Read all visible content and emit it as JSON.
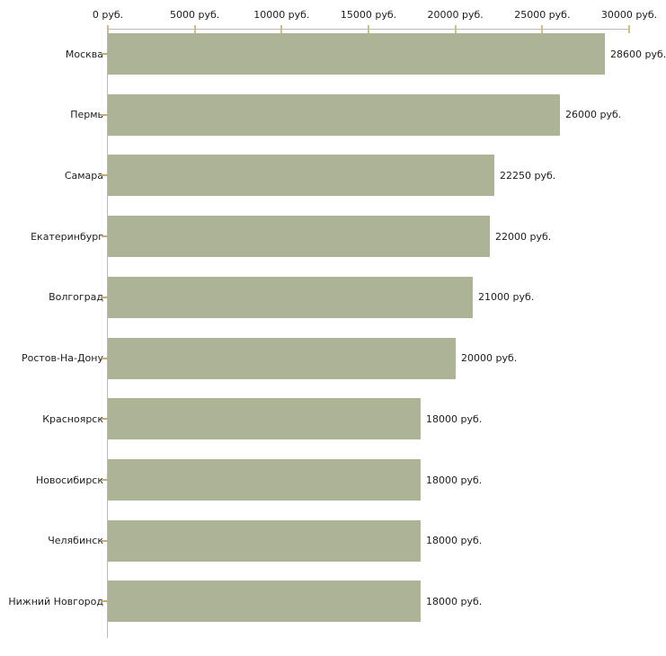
{
  "chart_data": {
    "type": "bar",
    "orientation": "horizontal",
    "title": "",
    "x_axis": {
      "position": "top",
      "tick_labels": [
        "0 руб.",
        "5000 руб.",
        "10000 руб.",
        "15000 руб.",
        "20000 руб.",
        "25000 руб.",
        "30000 руб."
      ],
      "tick_values": [
        0,
        5000,
        10000,
        15000,
        20000,
        25000,
        30000
      ],
      "xlim": [
        0,
        30000
      ]
    },
    "categories": [
      "Москва",
      "Пермь",
      "Самара",
      "Екатеринбург",
      "Волгоград",
      "Ростов-На-Дону",
      "Красноярск",
      "Новосибирск",
      "Челябинск",
      "Нижний Новгород"
    ],
    "values": [
      28600,
      26000,
      22250,
      22000,
      21000,
      20000,
      18000,
      18000,
      18000,
      18000
    ],
    "value_labels": [
      "28600 руб.",
      "26000 руб.",
      "22250 руб.",
      "22000 руб.",
      "21000 руб.",
      "20000 руб.",
      "18000 руб.",
      "18000 руб.",
      "18000 руб.",
      "18000 руб."
    ],
    "legend": null,
    "grid": false,
    "colors": {
      "bar": "#adb496",
      "axis_line": "#b9b9b9",
      "x_tick": "#cdc183",
      "y_tick": "#bfae72",
      "text": "#1c1c1c",
      "background": "#ffffff"
    }
  }
}
